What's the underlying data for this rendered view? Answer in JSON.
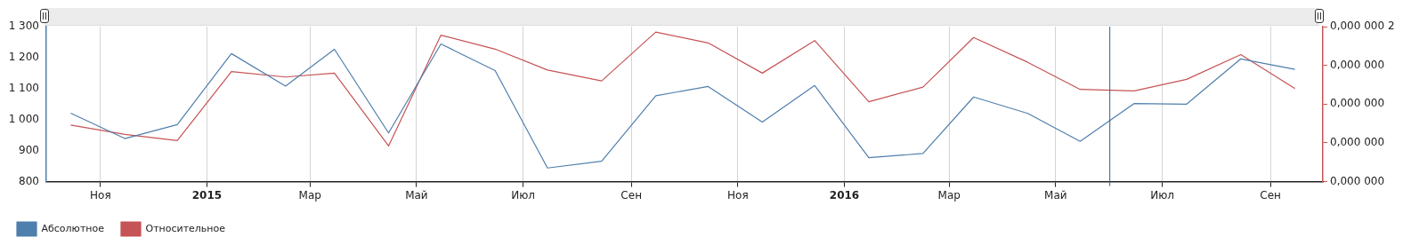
{
  "chart_data": {
    "type": "line",
    "x": [
      "2014-10-15",
      "2014-11-15",
      "2014-12-15",
      "2015-01-15",
      "2015-02-15",
      "2015-03-15",
      "2015-04-15",
      "2015-05-15",
      "2015-06-15",
      "2015-07-15",
      "2015-08-15",
      "2015-09-15",
      "2015-10-15",
      "2015-11-15",
      "2015-12-15",
      "2016-01-15",
      "2016-02-15",
      "2016-03-15",
      "2016-04-15",
      "2016-05-15",
      "2016-06-15",
      "2016-07-15",
      "2016-08-15",
      "2016-09-15"
    ],
    "series": [
      {
        "name": "Абсолютное",
        "color": "#4f7fad",
        "values": [
          1021,
          939,
          984,
          1213,
          1108,
          1227,
          957,
          1244,
          1158,
          844,
          866,
          1077,
          1107,
          992,
          1110,
          877,
          891,
          1073,
          1020,
          930,
          1052,
          1050,
          1196,
          1162
        ]
      },
      {
        "name": "Относительное",
        "color": "#c65355",
        "axis": "y2",
        "values": [
          7.3e-08,
          6.1e-08,
          5.3e-08,
          1.42e-07,
          1.35e-07,
          1.4e-07,
          4.6e-08,
          1.89e-07,
          1.71e-07,
          1.44e-07,
          1.3e-07,
          1.93e-07,
          1.79e-07,
          1.4e-07,
          1.82e-07,
          1.03e-07,
          1.22e-07,
          1.86e-07,
          1.54e-07,
          1.19e-07,
          1.17e-07,
          1.32e-07,
          1.64e-07,
          1.2e-07
        ]
      }
    ],
    "xlim": [
      "2014-10-01",
      "2016-10-01"
    ],
    "xticks": [
      {
        "value": "2014-11-01",
        "label": "Ноя"
      },
      {
        "value": "2015-01-01",
        "label": "2015"
      },
      {
        "value": "2015-03-01",
        "label": "Мар"
      },
      {
        "value": "2015-05-01",
        "label": "Май"
      },
      {
        "value": "2015-07-01",
        "label": "Июл"
      },
      {
        "value": "2015-09-01",
        "label": "Сен"
      },
      {
        "value": "2015-11-01",
        "label": "Ноя"
      },
      {
        "value": "2016-01-01",
        "label": "2016"
      },
      {
        "value": "2016-03-01",
        "label": "Мар"
      },
      {
        "value": "2016-05-01",
        "label": "Май"
      },
      {
        "value": "2016-07-01",
        "label": "Июл"
      },
      {
        "value": "2016-09-01",
        "label": "Сен"
      }
    ],
    "ylim": [
      800,
      1300
    ],
    "yticks": [
      {
        "value": 800,
        "label": "800"
      },
      {
        "value": 900,
        "label": "900"
      },
      {
        "value": 1000,
        "label": "1 000"
      },
      {
        "value": 1100,
        "label": "1 100"
      },
      {
        "value": 1200,
        "label": "1 200"
      },
      {
        "value": 1300,
        "label": "1 300"
      }
    ],
    "y2lim": [
      0,
      2e-07
    ],
    "y2ticks": [
      {
        "value": 0,
        "label": "0,000 000"
      },
      {
        "value": 5e-08,
        "label": "0,000 000"
      },
      {
        "value": 1e-07,
        "label": "0,000 000"
      },
      {
        "value": 1.5e-07,
        "label": "0,000 000"
      },
      {
        "value": 2e-07,
        "label": "0,000 000 2"
      }
    ],
    "ref_lines": [
      {
        "axis": "x",
        "value": "2016-06-01",
        "color": "#2e5f8a"
      }
    ],
    "grid": "x",
    "legend": "bottom left",
    "marker": "none",
    "line_style": "solid"
  }
}
